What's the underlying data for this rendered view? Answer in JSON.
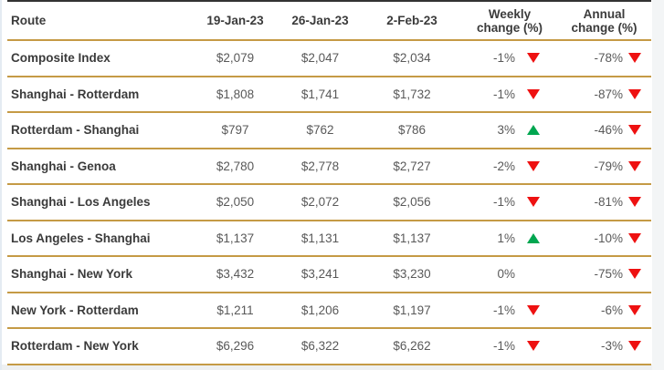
{
  "colors": {
    "gold_rule": "#c59a45",
    "down_red": "#ee1111",
    "up_green": "#00a650",
    "header_text": "#3b3b3b",
    "value_text": "#595959"
  },
  "table": {
    "header": {
      "route": "Route",
      "date1": "19-Jan-23",
      "date2": "26-Jan-23",
      "date3": "2-Feb-23",
      "weekly_line1": "Weekly",
      "weekly_line2": "change (%)",
      "annual_line1": "Annual",
      "annual_line2": "change (%)"
    },
    "rows": [
      {
        "route": "Composite Index",
        "values": [
          "$2,079",
          "$2,047",
          "$2,034"
        ],
        "weekly": {
          "label": "-1%",
          "direction": "down"
        },
        "annual": {
          "label": "-78%",
          "direction": "down"
        }
      },
      {
        "route": "Shanghai - Rotterdam",
        "values": [
          "$1,808",
          "$1,741",
          "$1,732"
        ],
        "weekly": {
          "label": "-1%",
          "direction": "down"
        },
        "annual": {
          "label": "-87%",
          "direction": "down"
        }
      },
      {
        "route": "Rotterdam - Shanghai",
        "values": [
          "$797",
          "$762",
          "$786"
        ],
        "weekly": {
          "label": "3%",
          "direction": "up"
        },
        "annual": {
          "label": "-46%",
          "direction": "down"
        }
      },
      {
        "route": "Shanghai - Genoa",
        "values": [
          "$2,780",
          "$2,778",
          "$2,727"
        ],
        "weekly": {
          "label": "-2%",
          "direction": "down"
        },
        "annual": {
          "label": "-79%",
          "direction": "down"
        }
      },
      {
        "route": "Shanghai - Los Angeles",
        "values": [
          "$2,050",
          "$2,072",
          "$2,056"
        ],
        "weekly": {
          "label": "-1%",
          "direction": "down"
        },
        "annual": {
          "label": "-81%",
          "direction": "down"
        }
      },
      {
        "route": "Los Angeles - Shanghai",
        "values": [
          "$1,137",
          "$1,131",
          "$1,137"
        ],
        "weekly": {
          "label": "1%",
          "direction": "up"
        },
        "annual": {
          "label": "-10%",
          "direction": "down"
        }
      },
      {
        "route": "Shanghai - New York",
        "values": [
          "$3,432",
          "$3,241",
          "$3,230"
        ],
        "weekly": {
          "label": "0%",
          "direction": "none"
        },
        "annual": {
          "label": "-75%",
          "direction": "down"
        }
      },
      {
        "route": "New York - Rotterdam",
        "values": [
          "$1,211",
          "$1,206",
          "$1,197"
        ],
        "weekly": {
          "label": "-1%",
          "direction": "down"
        },
        "annual": {
          "label": "-6%",
          "direction": "down"
        }
      },
      {
        "route": "Rotterdam - New York",
        "values": [
          "$6,296",
          "$6,322",
          "$6,262"
        ],
        "weekly": {
          "label": "-1%",
          "direction": "down"
        },
        "annual": {
          "label": "-3%",
          "direction": "down"
        }
      }
    ]
  }
}
